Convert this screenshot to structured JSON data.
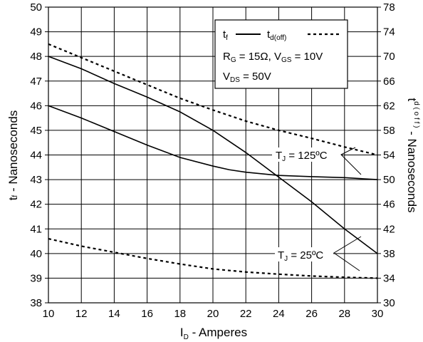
{
  "chart_data": {
    "type": "line",
    "xlabel": "I",
    "xlabel_sub": "D",
    "xlabel_rest": " - Amperes",
    "ylabel_left": "t",
    "ylabel_left_sub": "f",
    "ylabel_left_rest": " - Nanoseconds",
    "ylabel_right": "t",
    "ylabel_right_sub": "d ( o f f )",
    "ylabel_right_rest": " - Nanoseconds",
    "xlim": [
      10,
      30
    ],
    "ylim_left": [
      38,
      50
    ],
    "ylim_right": [
      30,
      78
    ],
    "xticks": [
      "10",
      "12",
      "14",
      "16",
      "18",
      "20",
      "22",
      "24",
      "26",
      "28",
      "30"
    ],
    "yticks_left": [
      "38",
      "39",
      "40",
      "41",
      "42",
      "43",
      "44",
      "45",
      "46",
      "47",
      "48",
      "49",
      "50"
    ],
    "yticks_right": [
      "30",
      "34",
      "38",
      "42",
      "46",
      "50",
      "54",
      "58",
      "62",
      "66",
      "70",
      "74",
      "78"
    ],
    "grid": true,
    "legend": {
      "placement": "top-right",
      "entries": [
        {
          "label": "t",
          "sub": "f",
          "style": "solid"
        },
        {
          "label": "t",
          "sub": "d(off)",
          "style": "dashed"
        }
      ],
      "conditions": [
        {
          "parts": [
            [
              "R",
              ""
            ],
            [
              "G",
              "sub"
            ],
            [
              " = 15Ω,  V",
              ""
            ],
            [
              "GS",
              "sub"
            ],
            [
              " = 10V",
              ""
            ]
          ]
        },
        {
          "parts": [
            [
              "V",
              ""
            ],
            [
              "DS",
              "sub"
            ],
            [
              " = 50V",
              ""
            ]
          ]
        }
      ]
    },
    "annotations": [
      {
        "text": "T",
        "sub": "J",
        "rest": " = 125ºC"
      },
      {
        "text": "T",
        "sub": "J",
        "rest": " = 25ºC"
      }
    ],
    "series": [
      {
        "axis": "left",
        "style": "solid",
        "x": [
          10,
          12,
          14,
          16,
          18,
          20,
          22,
          24,
          26,
          28,
          30
        ],
        "y": [
          48.0,
          47.5,
          46.9,
          46.35,
          45.75,
          45.0,
          44.1,
          43.1,
          42.1,
          41.0,
          40.0
        ]
      },
      {
        "axis": "left",
        "style": "solid",
        "x": [
          10,
          12,
          14,
          16,
          18,
          20,
          21,
          22,
          24,
          26,
          28,
          30
        ],
        "y": [
          46.0,
          45.5,
          44.95,
          44.4,
          43.9,
          43.55,
          43.4,
          43.3,
          43.17,
          43.12,
          43.08,
          43.0
        ]
      },
      {
        "axis": "right",
        "style": "dashed",
        "x": [
          10,
          12,
          14,
          16,
          18,
          20,
          22,
          24,
          26,
          28,
          30
        ],
        "y": [
          72.0,
          69.8,
          67.6,
          65.4,
          63.2,
          61.3,
          59.5,
          58.0,
          56.7,
          55.3,
          54.0
        ]
      },
      {
        "axis": "right",
        "style": "dashed",
        "x": [
          10,
          12,
          14,
          16,
          18,
          20,
          22,
          24,
          26,
          28,
          30
        ],
        "y": [
          40.4,
          39.2,
          38.2,
          37.2,
          36.3,
          35.5,
          35.0,
          34.65,
          34.35,
          34.15,
          34.0
        ]
      }
    ]
  }
}
